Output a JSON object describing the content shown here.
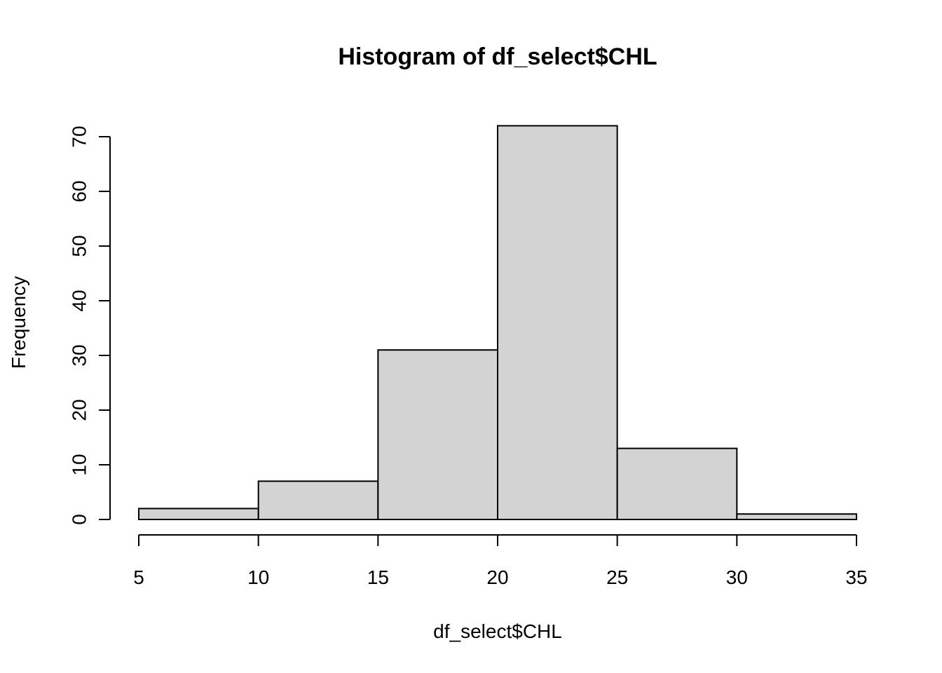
{
  "chart_data": {
    "type": "bar",
    "title": "Histogram of df_select$CHL",
    "xlabel": "df_select$CHL",
    "ylabel": "Frequency",
    "bins": [
      {
        "from": 5,
        "to": 10,
        "count": 2
      },
      {
        "from": 10,
        "to": 15,
        "count": 7
      },
      {
        "from": 15,
        "to": 20,
        "count": 31
      },
      {
        "from": 20,
        "to": 25,
        "count": 72
      },
      {
        "from": 25,
        "to": 30,
        "count": 13
      },
      {
        "from": 30,
        "to": 35,
        "count": 1
      }
    ],
    "xlim": [
      5,
      35
    ],
    "ylim": [
      0,
      70
    ],
    "x_ticks": [
      5,
      10,
      15,
      20,
      25,
      30,
      35
    ],
    "y_ticks": [
      0,
      10,
      20,
      30,
      40,
      50,
      60,
      70
    ],
    "bar_color": "#d3d3d3",
    "grid": false,
    "legend": false
  }
}
